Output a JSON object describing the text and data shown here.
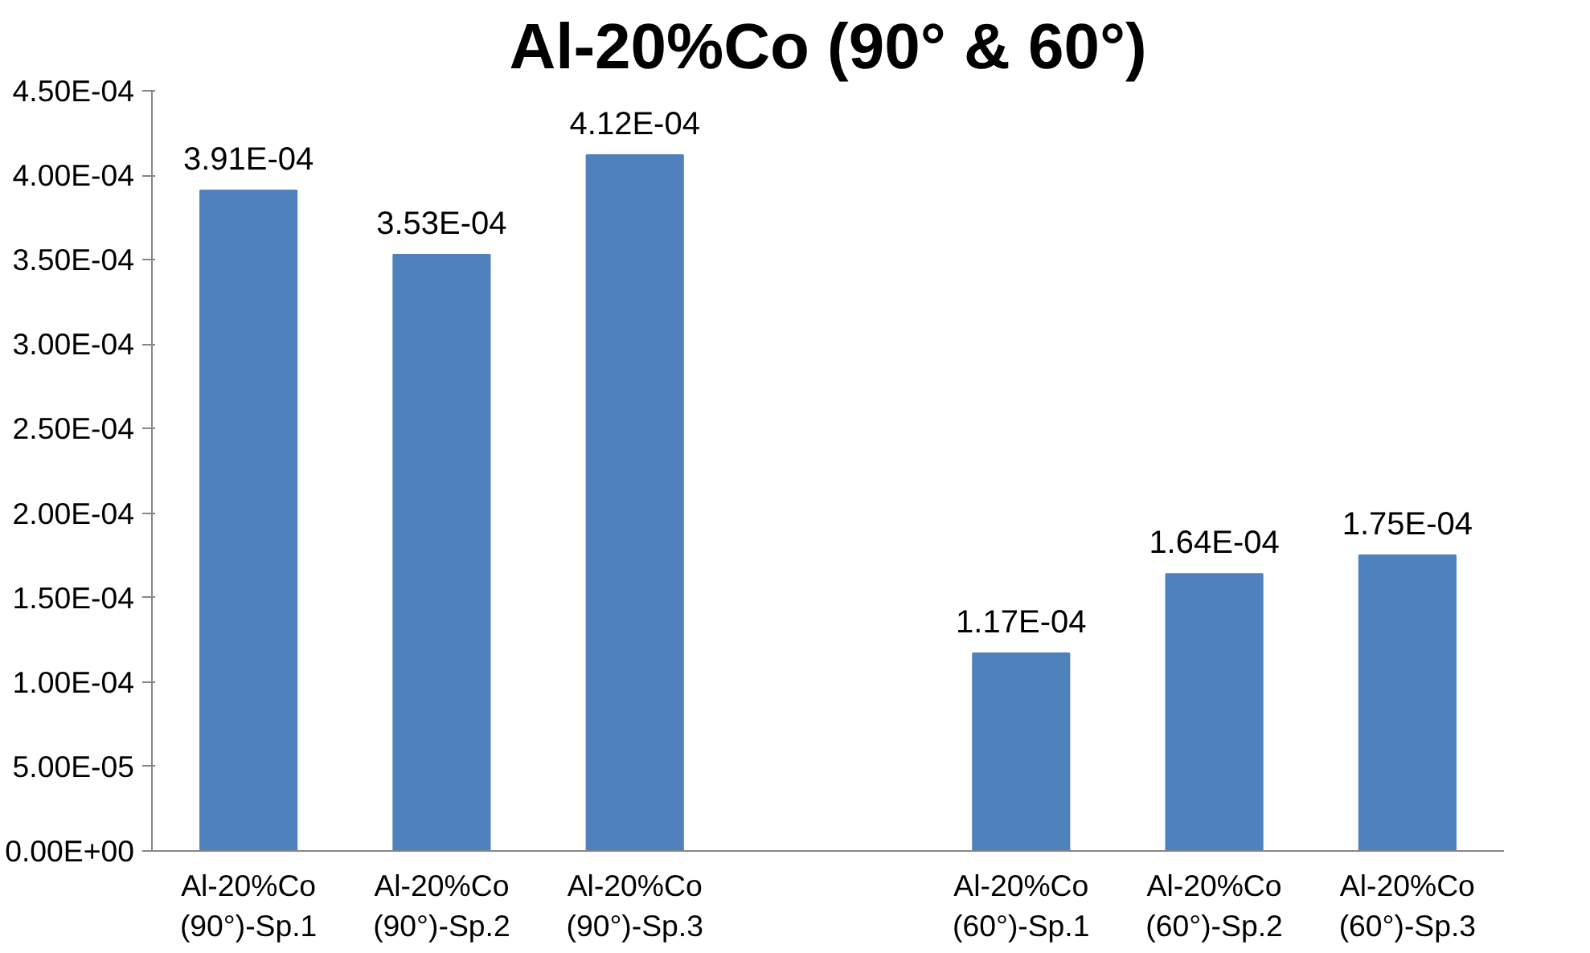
{
  "chart_data": {
    "type": "bar",
    "title": "Al-20%Co (90° & 60°)",
    "categories": [
      "Al-20%Co (90°)-Sp.1",
      "Al-20%Co (90°)-Sp.2",
      "Al-20%Co (90°)-Sp.3",
      null,
      "Al-20%Co (60°)-Sp.1",
      "Al-20%Co (60°)-Sp.2",
      "Al-20%Co (60°)-Sp.3"
    ],
    "values": [
      0.000391,
      0.000353,
      0.000412,
      null,
      0.000117,
      0.000164,
      0.000175
    ],
    "value_labels": [
      "3.91E-04",
      "3.53E-04",
      "4.12E-04",
      null,
      "1.17E-04",
      "1.64E-04",
      "1.75E-04"
    ],
    "color": "#4f81bd",
    "ylim": [
      0,
      0.00045
    ],
    "yticks": [
      {
        "value": 0,
        "label": "0.00E+00"
      },
      {
        "value": 5e-05,
        "label": "5.00E-05"
      },
      {
        "value": 0.0001,
        "label": "1.00E-04"
      },
      {
        "value": 0.00015,
        "label": "1.50E-04"
      },
      {
        "value": 0.0002,
        "label": "2.00E-04"
      },
      {
        "value": 0.00025,
        "label": "2.50E-04"
      },
      {
        "value": 0.0003,
        "label": "3.00E-04"
      },
      {
        "value": 0.00035,
        "label": "3.50E-04"
      },
      {
        "value": 0.0004,
        "label": "4.00E-04"
      },
      {
        "value": 0.00045,
        "label": "4.50E-04"
      }
    ],
    "grid": false
  }
}
